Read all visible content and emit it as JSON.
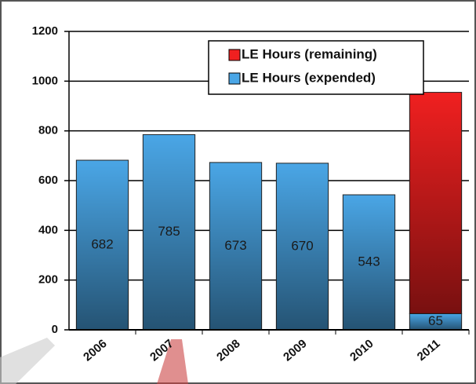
{
  "chart_data": {
    "type": "stacked-bar",
    "categories": [
      "2006",
      "2007",
      "2008",
      "2009",
      "2010",
      "2011"
    ],
    "series": [
      {
        "name": "LE Hours (expended)",
        "color": "#4aa6e6",
        "values": [
          682,
          785,
          673,
          670,
          543,
          65
        ]
      },
      {
        "name": "LE Hours (remaining)",
        "color": "#f02020",
        "values": [
          0,
          0,
          0,
          0,
          0,
          890
        ]
      }
    ],
    "ylim": [
      0,
      1200
    ],
    "yticks": [
      0,
      200,
      400,
      600,
      800,
      1000,
      1200
    ],
    "grid": true,
    "legend": "top-right"
  }
}
